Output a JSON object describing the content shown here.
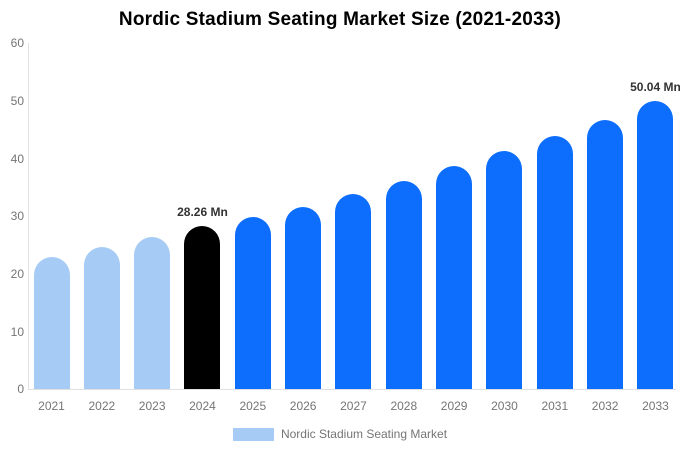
{
  "title": "Nordic Stadium Seating Market Size (2021-2033)",
  "legend": {
    "label": "Nordic Stadium Seating Market",
    "swatch_color": "#a6ccf5"
  },
  "colors": {
    "historical_bar": "#a6ccf5",
    "base_year_bar": "#000000",
    "forecast_bar": "#0d6efd",
    "axis_line": "#e0e0e0",
    "tick_text": "#757575",
    "title_text": "#000000",
    "data_label_text": "#333333",
    "background": "#ffffff"
  },
  "chart_data": {
    "type": "bar",
    "title": "Nordic Stadium Seating Market Size (2021-2033)",
    "unit": "Mn",
    "categories": [
      "2021",
      "2022",
      "2023",
      "2024",
      "2025",
      "2026",
      "2027",
      "2028",
      "2029",
      "2030",
      "2031",
      "2032",
      "2033"
    ],
    "values": [
      23.0,
      24.7,
      26.4,
      28.26,
      29.8,
      31.6,
      33.9,
      36.2,
      38.7,
      41.3,
      43.9,
      46.7,
      50.04
    ],
    "bar_roles": [
      "historical",
      "historical",
      "historical",
      "base_year",
      "forecast",
      "forecast",
      "forecast",
      "forecast",
      "forecast",
      "forecast",
      "forecast",
      "forecast",
      "forecast"
    ],
    "data_labels": [
      "",
      "",
      "",
      "28.26 Mn",
      "",
      "",
      "",
      "",
      "",
      "",
      "",
      "",
      "50.04 Mn"
    ],
    "xlabel": "",
    "ylabel": "",
    "ylim": [
      0,
      60
    ],
    "yticks": [
      0,
      10,
      20,
      30,
      40,
      50,
      60
    ],
    "grid": false,
    "legend_position": "bottom",
    "legend_entries": [
      "Nordic Stadium Seating Market"
    ]
  }
}
